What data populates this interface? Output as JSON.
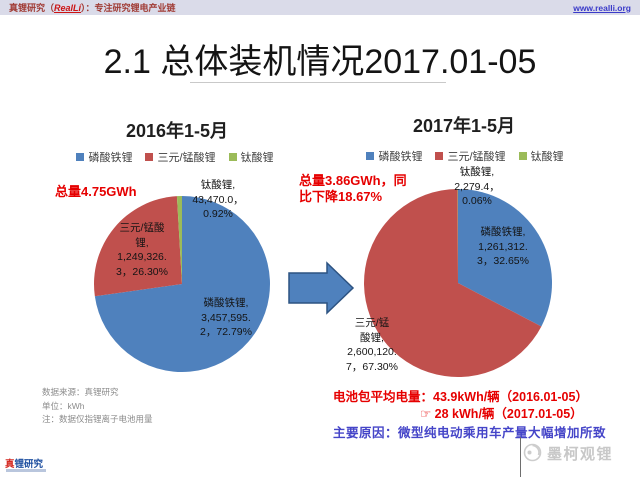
{
  "header": {
    "brand_prefix": "真锂研究（",
    "brand_name": "RealLi",
    "brand_suffix": "）：专注研究锂电产业链",
    "link": "www.realli.org"
  },
  "title": "2.1 总体装机情况2017.01-05",
  "chart_data": [
    {
      "type": "pie",
      "title": "2016年1-5月",
      "total_annotation": "总量4.75GWh",
      "unit": "kWh",
      "legend": [
        "磷酸铁锂",
        "三元/锰酸锂",
        "钛酸锂"
      ],
      "legend_position": "top",
      "slices": [
        {
          "name": "磷酸铁锂",
          "value": 3457595.2,
          "pct": 72.79,
          "color": "#4F81BD",
          "label": "磷酸铁锂,\n3,457,595.\n2，72.79%"
        },
        {
          "name": "三元/锰酸锂",
          "value": 1249326.3,
          "pct": 26.3,
          "color": "#C0504D",
          "label": "三元/锰酸\n锂,\n1,249,326.\n3，26.30%"
        },
        {
          "name": "钛酸锂",
          "value": 43470.0,
          "pct": 0.92,
          "color": "#9BBB59",
          "label": "钛酸锂,\n43,470.0，\n0.92%"
        }
      ]
    },
    {
      "type": "pie",
      "title": "2017年1-5月",
      "total_annotation": "总量3.86GWh，同\n比下降18.67%",
      "unit": "kWh",
      "legend": [
        "磷酸铁锂",
        "三元/锰酸锂",
        "钛酸锂"
      ],
      "legend_position": "top",
      "slices": [
        {
          "name": "磷酸铁锂",
          "value": 1261312.3,
          "pct": 32.65,
          "color": "#4F81BD",
          "label": "磷酸铁锂,\n1,261,312.\n3，32.65%"
        },
        {
          "name": "三元/锰酸锂",
          "value": 2600120.7,
          "pct": 67.3,
          "color": "#C0504D",
          "label": "三元/锰\n酸锂,\n2,600,120.\n7，67.30%"
        },
        {
          "name": "钛酸锂",
          "value": 2279.4,
          "pct": 0.06,
          "color": "#9BBB59",
          "label": "钛酸锂,\n2,279.4，\n0.06%"
        }
      ]
    }
  ],
  "arrow_color": "#4F81BD",
  "notes": {
    "source": "数据来源：真锂研究",
    "unit": "单位：kWh",
    "remark": "注：数据仅指锂离子电池用量"
  },
  "summary": {
    "avg_line1": "电池包平均电量：43.9kWh/辆（2016.01-05）",
    "avg_line2": "☞ 28 kWh/辆（2017.01-05）",
    "reason": "主要原因：微型纯电动乘用车产量大幅增加所致"
  },
  "footer": {
    "logo_first": "真",
    "logo_rest": "锂研究",
    "watermark": "墨柯观锂"
  }
}
